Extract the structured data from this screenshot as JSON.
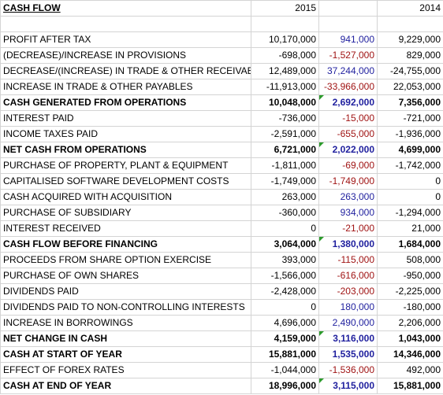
{
  "header": {
    "title": "CASH FLOW",
    "col_2015": "2015",
    "col_2014": "2014"
  },
  "colors": {
    "positive_diff": "#1f1f9e",
    "negative_diff": "#a01414",
    "comment_flag": "#2c9b2c"
  },
  "rows": [
    {
      "label": "PROFIT AFTER TAX",
      "v2015": "10,170,000",
      "diff": "941,000",
      "v2014": "9,229,000"
    },
    {
      "label": "(DECREASE)/INCREASE IN PROVISIONS",
      "v2015": "-698,000",
      "diff": "-1,527,000",
      "v2014": "829,000"
    },
    {
      "label": "DECREASE/(INCREASE) IN TRADE & OTHER RECEIVAE",
      "v2015": "12,489,000",
      "diff": "37,244,000",
      "v2014": "-24,755,000"
    },
    {
      "label": "INCREASE IN TRADE & OTHER PAYABLES",
      "v2015": "-11,913,000",
      "diff": "-33,966,000",
      "v2014": "22,053,000"
    },
    {
      "label": "CASH GENERATED FROM OPERATIONS",
      "v2015": "10,048,000",
      "diff": "2,692,000",
      "v2014": "7,356,000"
    },
    {
      "label": "INTEREST PAID",
      "v2015": "-736,000",
      "diff": "-15,000",
      "v2014": "-721,000"
    },
    {
      "label": "INCOME TAXES PAID",
      "v2015": "-2,591,000",
      "diff": "-655,000",
      "v2014": "-1,936,000"
    },
    {
      "label": "NET CASH FROM OPERATIONS",
      "v2015": "6,721,000",
      "diff": "2,022,000",
      "v2014": "4,699,000"
    },
    {
      "label": "PURCHASE OF PROPERTY, PLANT & EQUIPMENT",
      "v2015": "-1,811,000",
      "diff": "-69,000",
      "v2014": "-1,742,000"
    },
    {
      "label": "CAPITALISED SOFTWARE DEVELOPMENT COSTS",
      "v2015": "-1,749,000",
      "diff": "-1,749,000",
      "v2014": "0"
    },
    {
      "label": "CASH ACQUIRED WITH ACQUISITION",
      "v2015": "263,000",
      "diff": "263,000",
      "v2014": "0"
    },
    {
      "label": "PURCHASE OF SUBSIDIARY",
      "v2015": "-360,000",
      "diff": "934,000",
      "v2014": "-1,294,000"
    },
    {
      "label": "INTEREST RECEIVED",
      "v2015": "0",
      "diff": "-21,000",
      "v2014": "21,000"
    },
    {
      "label": "CASH FLOW BEFORE FINANCING",
      "v2015": "3,064,000",
      "diff": "1,380,000",
      "v2014": "1,684,000"
    },
    {
      "label": "PROCEEDS FROM SHARE OPTION EXERCISE",
      "v2015": "393,000",
      "diff": "-115,000",
      "v2014": "508,000"
    },
    {
      "label": "PURCHASE OF OWN SHARES",
      "v2015": "-1,566,000",
      "diff": "-616,000",
      "v2014": "-950,000"
    },
    {
      "label": "DIVIDENDS PAID",
      "v2015": "-2,428,000",
      "diff": "-203,000",
      "v2014": "-2,225,000"
    },
    {
      "label": "DIVIDENDS PAID TO NON-CONTROLLING INTERESTS",
      "v2015": "0",
      "diff": "180,000",
      "v2014": "-180,000"
    },
    {
      "label": "INCREASE IN BORROWINGS",
      "v2015": "4,696,000",
      "diff": "2,490,000",
      "v2014": "2,206,000"
    },
    {
      "label": "NET CHANGE IN CASH",
      "v2015": "4,159,000",
      "diff": "3,116,000",
      "v2014": "1,043,000"
    },
    {
      "label": "CASH AT START OF YEAR",
      "v2015": "15,881,000",
      "diff": "1,535,000",
      "v2014": "14,346,000"
    },
    {
      "label": "EFFECT OF FOREX RATES",
      "v2015": "-1,044,000",
      "diff": "-1,536,000",
      "v2014": "492,000"
    },
    {
      "label": "CASH AT END OF YEAR",
      "v2015": "18,996,000",
      "diff": "3,115,000",
      "v2014": "15,881,000"
    }
  ]
}
